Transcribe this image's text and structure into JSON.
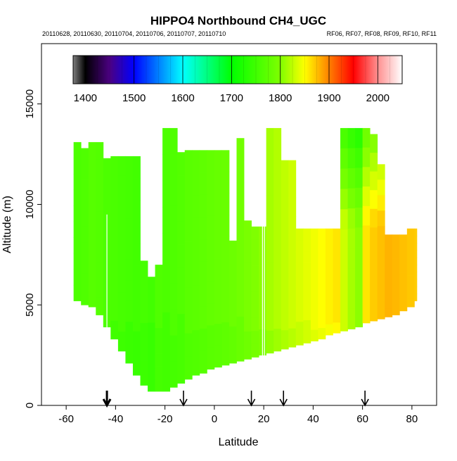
{
  "chart_data": {
    "type": "heatmap",
    "title": "HIPPO4 Northbound CH4_UGC",
    "dates": "20110628, 20110630, 20110704, 20110706, 20110707, 20110710",
    "flights": "RF06, RF07, RF08, RF09, RF10, RF11",
    "xlabel": "Latitude",
    "ylabel": "Altitude (m)",
    "xlim": [
      -70,
      90
    ],
    "ylim": [
      0,
      18000
    ],
    "x_ticks": [
      -60,
      -40,
      -20,
      0,
      20,
      40,
      60,
      80
    ],
    "y_ticks": [
      0,
      5000,
      10000,
      15000
    ],
    "colorbar": {
      "range": [
        1375,
        2050
      ],
      "ticks": [
        1400,
        1500,
        1600,
        1700,
        1800,
        1900,
        2000
      ],
      "stops": [
        {
          "v": 1375,
          "c": "#7f7f7f"
        },
        {
          "v": 1400,
          "c": "#000000"
        },
        {
          "v": 1450,
          "c": "#4b0082"
        },
        {
          "v": 1500,
          "c": "#0000ff"
        },
        {
          "v": 1600,
          "c": "#00ffff"
        },
        {
          "v": 1700,
          "c": "#00ff00"
        },
        {
          "v": 1800,
          "c": "#7fff00"
        },
        {
          "v": 1850,
          "c": "#ffff00"
        },
        {
          "v": 1900,
          "c": "#ff8000"
        },
        {
          "v": 1950,
          "c": "#ff0000"
        },
        {
          "v": 2000,
          "c": "#ff9090"
        },
        {
          "v": 2050,
          "c": "#ffffff"
        }
      ]
    },
    "profile_arrows": [
      {
        "lat": -43.5,
        "bold": true
      },
      {
        "lat": -12.5,
        "bold": false
      },
      {
        "lat": 15,
        "bold": false
      },
      {
        "lat": 28,
        "bold": false
      },
      {
        "lat": 61,
        "bold": false
      }
    ],
    "coverage_columns": [
      {
        "lat0": -57,
        "lat1": -54,
        "top": 13100,
        "bottom": 5200,
        "ch4": 1760
      },
      {
        "lat0": -54,
        "lat1": -51,
        "top": 12800,
        "bottom": 5000,
        "ch4": 1762
      },
      {
        "lat0": -51,
        "lat1": -48,
        "top": 13100,
        "bottom": 4900,
        "ch4": 1768
      },
      {
        "lat0": -48,
        "lat1": -45,
        "top": 13100,
        "bottom": 4500,
        "ch4": 1765
      },
      {
        "lat0": -45,
        "lat1": -42,
        "top": 12300,
        "bottom": 3900,
        "ch4": 1760
      },
      {
        "lat0": -42,
        "lat1": -39,
        "top": 12400,
        "bottom": 3300,
        "ch4": 1758
      },
      {
        "lat0": -39,
        "lat1": -36,
        "top": 12400,
        "bottom": 2700,
        "ch4": 1756
      },
      {
        "lat0": -36,
        "lat1": -33,
        "top": 12400,
        "bottom": 2100,
        "ch4": 1754
      },
      {
        "lat0": -33,
        "lat1": -30,
        "top": 12400,
        "bottom": 1500,
        "ch4": 1752
      },
      {
        "lat0": -30,
        "lat1": -27,
        "top": 7200,
        "bottom": 1000,
        "ch4": 1755
      },
      {
        "lat0": -27,
        "lat1": -24,
        "top": 6400,
        "bottom": 700,
        "ch4": 1752
      },
      {
        "lat0": -24,
        "lat1": -21,
        "top": 7000,
        "bottom": 700,
        "ch4": 1762
      },
      {
        "lat0": -21,
        "lat1": -18,
        "top": 13800,
        "bottom": 700,
        "ch4": 1760
      },
      {
        "lat0": -18,
        "lat1": -15,
        "top": 13800,
        "bottom": 900,
        "ch4": 1762
      },
      {
        "lat0": -15,
        "lat1": -12,
        "top": 12600,
        "bottom": 1100,
        "ch4": 1765
      },
      {
        "lat0": -12,
        "lat1": -9,
        "top": 12700,
        "bottom": 1300,
        "ch4": 1770
      },
      {
        "lat0": -9,
        "lat1": -6,
        "top": 12700,
        "bottom": 1500,
        "ch4": 1772
      },
      {
        "lat0": -6,
        "lat1": -3,
        "top": 12700,
        "bottom": 1600,
        "ch4": 1775
      },
      {
        "lat0": -3,
        "lat1": 0,
        "top": 12700,
        "bottom": 1800,
        "ch4": 1778
      },
      {
        "lat0": 0,
        "lat1": 3,
        "top": 12700,
        "bottom": 1900,
        "ch4": 1780
      },
      {
        "lat0": 3,
        "lat1": 6,
        "top": 12700,
        "bottom": 2000,
        "ch4": 1782
      },
      {
        "lat0": 6,
        "lat1": 9,
        "top": 8200,
        "bottom": 2100,
        "ch4": 1785
      },
      {
        "lat0": 9,
        "lat1": 12,
        "top": 13300,
        "bottom": 2200,
        "ch4": 1790
      },
      {
        "lat0": 12,
        "lat1": 15,
        "top": 9200,
        "bottom": 2300,
        "ch4": 1795
      },
      {
        "lat0": 15,
        "lat1": 18,
        "top": 8900,
        "bottom": 2400,
        "ch4": 1800
      },
      {
        "lat0": 18,
        "lat1": 21,
        "top": 8900,
        "bottom": 2500,
        "ch4": 1805
      },
      {
        "lat0": 21,
        "lat1": 24,
        "top": 13800,
        "bottom": 2600,
        "ch4": 1815
      },
      {
        "lat0": 24,
        "lat1": 27,
        "top": 13800,
        "bottom": 2700,
        "ch4": 1820
      },
      {
        "lat0": 27,
        "lat1": 30,
        "top": 12200,
        "bottom": 2800,
        "ch4": 1825
      },
      {
        "lat0": 30,
        "lat1": 33,
        "top": 12200,
        "bottom": 2900,
        "ch4": 1830
      },
      {
        "lat0": 33,
        "lat1": 36,
        "top": 8800,
        "bottom": 3000,
        "ch4": 1835
      },
      {
        "lat0": 36,
        "lat1": 39,
        "top": 8800,
        "bottom": 3100,
        "ch4": 1840
      },
      {
        "lat0": 39,
        "lat1": 42,
        "top": 8800,
        "bottom": 3200,
        "ch4": 1845
      },
      {
        "lat0": 42,
        "lat1": 45,
        "top": 8800,
        "bottom": 3300,
        "ch4": 1850
      },
      {
        "lat0": 45,
        "lat1": 48,
        "top": 8800,
        "bottom": 3500,
        "ch4": 1855
      },
      {
        "lat0": 48,
        "lat1": 51,
        "top": 8800,
        "bottom": 3600,
        "ch4": 1860
      },
      {
        "lat0": 51,
        "lat1": 54,
        "top": 13800,
        "bottom": 3700,
        "ch4": 1830
      },
      {
        "lat0": 54,
        "lat1": 57,
        "top": 13800,
        "bottom": 3800,
        "ch4": 1815
      },
      {
        "lat0": 57,
        "lat1": 60,
        "top": 13800,
        "bottom": 3900,
        "ch4": 1805
      },
      {
        "lat0": 60,
        "lat1": 63,
        "top": 13800,
        "bottom": 4100,
        "ch4": 1860
      },
      {
        "lat0": 63,
        "lat1": 66,
        "top": 13500,
        "bottom": 4200,
        "ch4": 1870
      },
      {
        "lat0": 66,
        "lat1": 69,
        "top": 12000,
        "bottom": 4300,
        "ch4": 1875
      },
      {
        "lat0": 69,
        "lat1": 72,
        "top": 8500,
        "bottom": 4400,
        "ch4": 1880
      },
      {
        "lat0": 72,
        "lat1": 75,
        "top": 8500,
        "bottom": 4500,
        "ch4": 1878
      },
      {
        "lat0": 75,
        "lat1": 78,
        "top": 8500,
        "bottom": 4700,
        "ch4": 1875
      },
      {
        "lat0": 78,
        "lat1": 81,
        "top": 8800,
        "bottom": 4900,
        "ch4": 1872
      },
      {
        "lat0": 81,
        "lat1": 82,
        "top": 8800,
        "bottom": 5200,
        "ch4": 1870
      }
    ]
  }
}
